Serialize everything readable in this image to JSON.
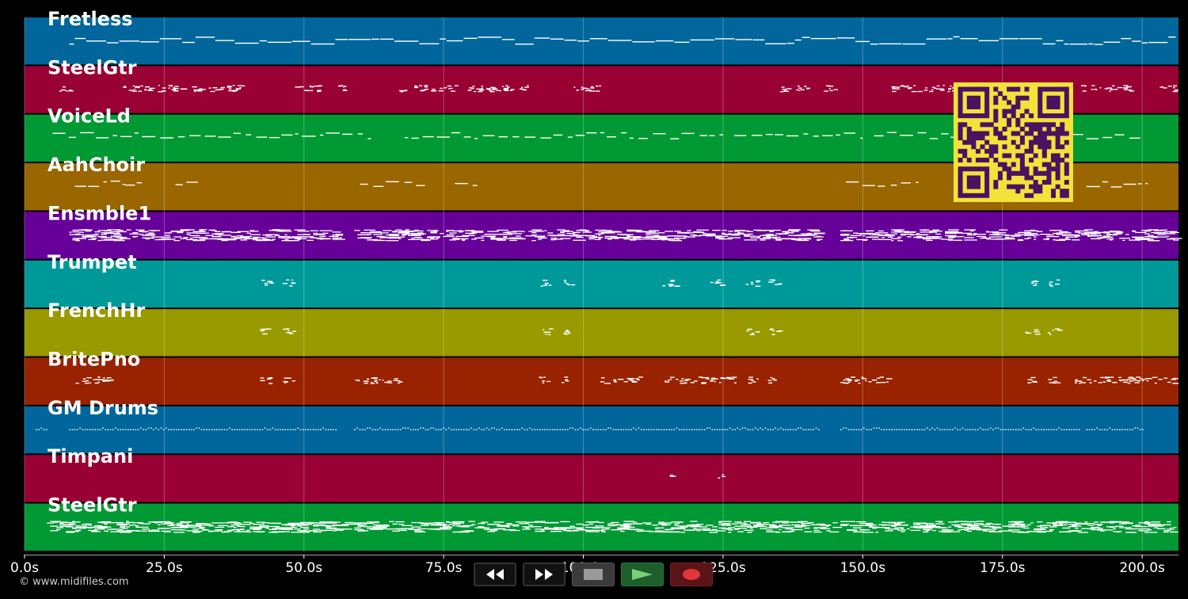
{
  "app": {
    "copyright": "© www.midifiles.com"
  },
  "colors": {
    "background": "#000000",
    "grid": "#ffffff",
    "note": "#ffffff",
    "qr_dark": "#4a1260",
    "qr_light": "#f2e23a"
  },
  "timeline": {
    "unit": "s",
    "min": 0,
    "max": 206.5,
    "ticks": [
      "0.0s",
      "25.0s",
      "50.0s",
      "75.0s",
      "100.0s",
      "125.0s",
      "150.0s",
      "175.0s",
      "200.0s"
    ],
    "tick_values": [
      0,
      25,
      50,
      75,
      100,
      125,
      150,
      175,
      200
    ]
  },
  "tracks": [
    {
      "name": "Fretless",
      "color": "#00669b",
      "density": 1,
      "sections": [
        [
          8,
          206
        ]
      ],
      "style": "line"
    },
    {
      "name": "SteelGtr",
      "color": "#990033",
      "density": 0.5,
      "sections": [
        [
          6,
          8
        ],
        [
          17,
          39
        ],
        [
          48,
          53
        ],
        [
          56,
          58
        ],
        [
          67,
          90
        ],
        [
          98,
          103
        ],
        [
          135,
          140
        ],
        [
          143,
          145
        ],
        [
          155,
          175
        ],
        [
          189,
          198
        ],
        [
          203,
          206
        ]
      ],
      "style": "cluster"
    },
    {
      "name": "VoiceLd",
      "color": "#009933",
      "density": 0.6,
      "sections": [
        [
          5,
          62
        ],
        [
          68,
          125
        ],
        [
          127,
          150
        ],
        [
          152,
          174
        ],
        [
          179,
          200
        ]
      ],
      "style": "dash"
    },
    {
      "name": "AahChoir",
      "color": "#996600",
      "density": 0.5,
      "sections": [
        [
          9,
          18
        ],
        [
          18,
          21
        ],
        [
          27,
          31
        ],
        [
          60,
          67
        ],
        [
          68,
          72
        ],
        [
          77,
          81
        ],
        [
          147,
          154
        ],
        [
          155,
          160
        ],
        [
          190,
          201
        ]
      ],
      "style": "dash"
    },
    {
      "name": "Ensmble1",
      "color": "#660099",
      "density": 1,
      "sections": [
        [
          8,
          56
        ],
        [
          59,
          142
        ],
        [
          146,
          206
        ]
      ],
      "style": "dense"
    },
    {
      "name": "Trumpet",
      "color": "#009999",
      "density": 0.3,
      "sections": [
        [
          42,
          44
        ],
        [
          46,
          48
        ],
        [
          92,
          94
        ],
        [
          96,
          98
        ],
        [
          114,
          117
        ],
        [
          122,
          125
        ],
        [
          129,
          131
        ],
        [
          133,
          135
        ],
        [
          179,
          181
        ],
        [
          183,
          185
        ]
      ],
      "style": "cluster"
    },
    {
      "name": "FrenchHr",
      "color": "#999900",
      "density": 0.3,
      "sections": [
        [
          42,
          44
        ],
        [
          46,
          48
        ],
        [
          92,
          94
        ],
        [
          96,
          98
        ],
        [
          129,
          131
        ],
        [
          133,
          135
        ],
        [
          179,
          181
        ],
        [
          183,
          185
        ]
      ],
      "style": "cluster"
    },
    {
      "name": "BritePno",
      "color": "#992200",
      "density": 0.6,
      "sections": [
        [
          9,
          17
        ],
        [
          42,
          44
        ],
        [
          46,
          48
        ],
        [
          59,
          68
        ],
        [
          92,
          94
        ],
        [
          96,
          98
        ],
        [
          103,
          110
        ],
        [
          114,
          127
        ],
        [
          129,
          131
        ],
        [
          133,
          135
        ],
        [
          146,
          155
        ],
        [
          179,
          181
        ],
        [
          183,
          185
        ],
        [
          187,
          206
        ]
      ],
      "style": "cluster"
    },
    {
      "name": "GM Drums",
      "color": "#00669b",
      "density": 1,
      "sections": [
        [
          2,
          4
        ],
        [
          8,
          56
        ],
        [
          59,
          142
        ],
        [
          146,
          189
        ],
        [
          190,
          200
        ]
      ],
      "style": "dots"
    },
    {
      "name": "Timpani",
      "color": "#990033",
      "density": 0.1,
      "sections": [
        [
          115,
          116
        ],
        [
          124,
          125
        ]
      ],
      "style": "cluster"
    },
    {
      "name": "SteelGtr",
      "color": "#009933",
      "density": 1,
      "sections": [
        [
          4,
          58
        ],
        [
          59,
          145
        ],
        [
          146,
          206
        ]
      ],
      "style": "dense"
    }
  ]
}
